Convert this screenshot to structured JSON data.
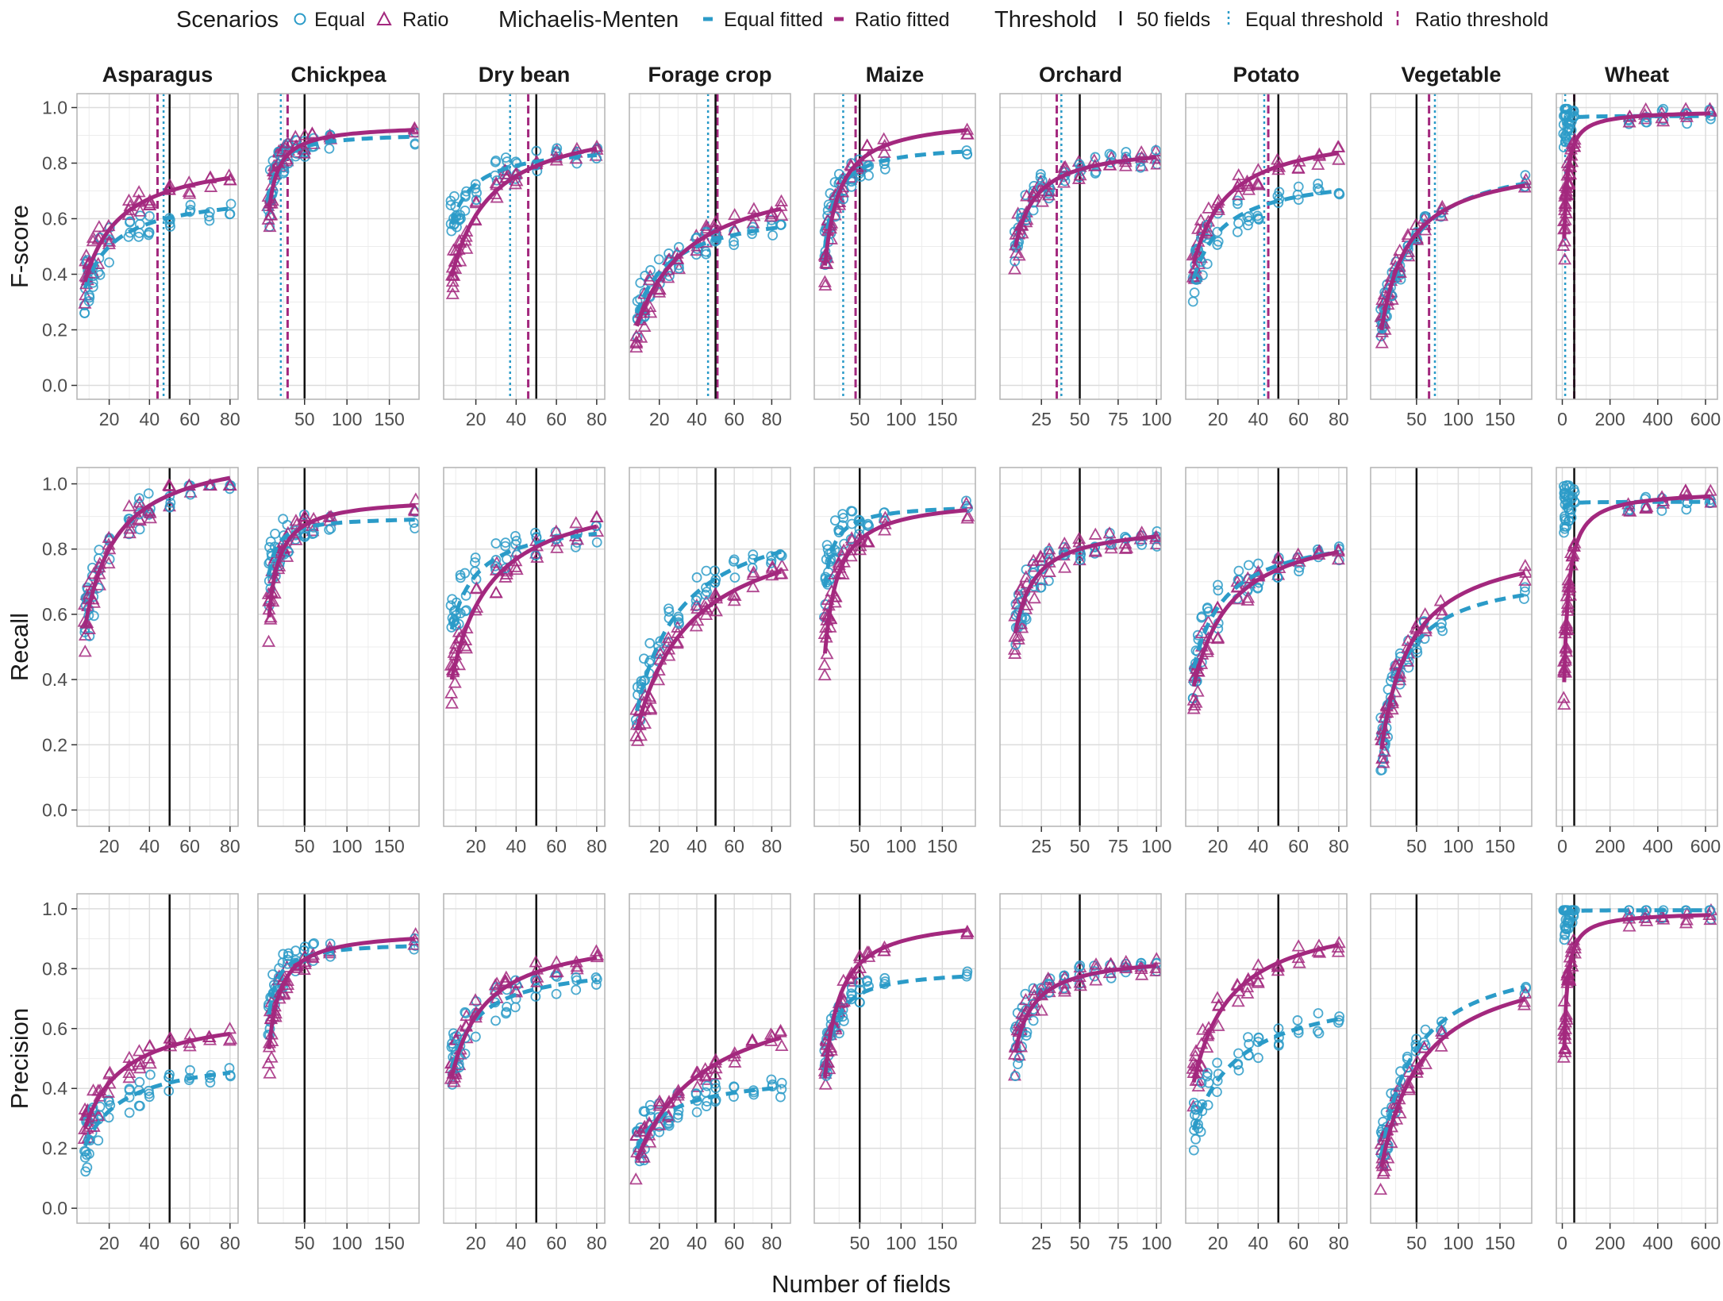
{
  "colors": {
    "equal": "#2b9bc8",
    "ratio": "#a3287e",
    "threshold": "#111111",
    "grid": "#dcdcdc",
    "frame": "#b3b3b3"
  },
  "legend": {
    "scenarios_title": "Scenarios",
    "equal_label": "Equal",
    "ratio_label": "Ratio",
    "mm_title": "Michaelis-Menten",
    "equal_fitted_label": "Equal fitted",
    "ratio_fitted_label": "Ratio fitted",
    "threshold_title": "Threshold",
    "fields50_label": "50 fields",
    "equal_threshold_label": "Equal threshold",
    "ratio_threshold_label": "Ratio threshold"
  },
  "chart_data": {
    "type": "scatter",
    "title": "",
    "xlabel": "Number of fields",
    "rows": [
      "F-score",
      "Recall",
      "Precision"
    ],
    "ylim": [
      -0.05,
      1.05
    ],
    "yticks": [
      0.0,
      0.2,
      0.4,
      0.6,
      0.8,
      1.0
    ],
    "ytick_labels": [
      "0.0",
      "0.2",
      "0.4",
      "0.6",
      "0.8",
      "1.0"
    ],
    "threshold_50": 50,
    "series": [
      {
        "name": "Equal"
      },
      {
        "name": "Ratio"
      },
      {
        "name": "Equal fitted"
      },
      {
        "name": "Ratio fitted"
      }
    ],
    "panels": [
      {
        "crop": "Asparagus",
        "xlim": [
          4,
          84
        ],
        "xticks": [
          20,
          40,
          60,
          80
        ],
        "xtick_labels": [
          "20",
          "40",
          "60",
          "80"
        ],
        "x_samples": [
          8,
          9,
          10,
          12,
          15,
          20,
          30,
          35,
          40,
          50,
          60,
          70,
          80
        ],
        "equal_threshold": 47,
        "ratio_threshold": 44,
        "fscore": {
          "equal_fit": [
            0.7,
            8
          ],
          "ratio_fit": [
            0.84,
            10
          ]
        },
        "recall": {
          "equal_fit": [
            1.12,
            8
          ],
          "ratio_fit": [
            1.12,
            8
          ]
        },
        "precision": {
          "equal_fit": [
            0.52,
            12
          ],
          "ratio_fit": [
            0.67,
            12
          ]
        }
      },
      {
        "crop": "Chickpea",
        "xlim": [
          -5,
          185
        ],
        "xticks": [
          50,
          100,
          150
        ],
        "xtick_labels": [
          "50",
          "100",
          "150"
        ],
        "x_samples": [
          8,
          10,
          12,
          15,
          20,
          25,
          30,
          40,
          50,
          60,
          80,
          180
        ],
        "equal_threshold": 22,
        "ratio_threshold": 30,
        "fscore": {
          "equal_fit": [
            0.91,
            3
          ],
          "ratio_fit": [
            0.94,
            4
          ]
        },
        "recall": {
          "equal_fit": [
            0.9,
            2
          ],
          "ratio_fit": [
            0.96,
            5
          ]
        },
        "precision": {
          "equal_fit": [
            0.89,
            3
          ],
          "ratio_fit": [
            0.93,
            6
          ]
        }
      },
      {
        "crop": "Dry bean",
        "xlim": [
          4,
          84
        ],
        "xticks": [
          20,
          40,
          60,
          80
        ],
        "xtick_labels": [
          "20",
          "40",
          "60",
          "80"
        ],
        "x_samples": [
          8,
          9,
          10,
          12,
          15,
          20,
          30,
          35,
          40,
          50,
          60,
          70,
          80
        ],
        "equal_threshold": 37,
        "ratio_threshold": 46,
        "fscore": {
          "equal_fit": [
            0.87,
            4
          ],
          "ratio_fit": [
            0.98,
            12
          ]
        },
        "recall": {
          "equal_fit": [
            0.9,
            5
          ],
          "ratio_fit": [
            1.0,
            12
          ]
        },
        "precision": {
          "equal_fit": [
            0.82,
            6
          ],
          "ratio_fit": [
            0.93,
            9
          ]
        }
      },
      {
        "crop": "Forage crop",
        "xlim": [
          4,
          90
        ],
        "xticks": [
          20,
          40,
          60,
          80
        ],
        "xtick_labels": [
          "20",
          "40",
          "60",
          "80"
        ],
        "x_samples": [
          8,
          10,
          12,
          15,
          20,
          25,
          30,
          40,
          45,
          50,
          60,
          70,
          80,
          85
        ],
        "equal_threshold": 46,
        "ratio_threshold": 51,
        "fscore": {
          "equal_fit": [
            0.65,
            12
          ],
          "ratio_fit": [
            0.8,
            22
          ]
        },
        "recall": {
          "equal_fit": [
            0.95,
            17
          ],
          "ratio_fit": [
            0.92,
            22
          ]
        },
        "precision": {
          "equal_fit": [
            0.45,
            10
          ],
          "ratio_fit": [
            0.77,
            30
          ]
        }
      },
      {
        "crop": "Maize",
        "xlim": [
          -5,
          190
        ],
        "xticks": [
          50,
          100,
          150
        ],
        "xtick_labels": [
          "50",
          "100",
          "150"
        ],
        "x_samples": [
          8,
          10,
          12,
          15,
          20,
          25,
          30,
          40,
          50,
          60,
          80,
          180
        ],
        "equal_threshold": 30,
        "ratio_threshold": 45,
        "fscore": {
          "equal_fit": [
            0.87,
            6
          ],
          "ratio_fit": [
            0.97,
            10
          ]
        },
        "recall": {
          "equal_fit": [
            0.94,
            3
          ],
          "ratio_fit": [
            0.96,
            8
          ]
        },
        "precision": {
          "equal_fit": [
            0.8,
            6
          ],
          "ratio_fit": [
            0.98,
            10
          ]
        }
      },
      {
        "crop": "Orchard",
        "xlim": [
          -2,
          103
        ],
        "xticks": [
          25,
          50,
          75,
          100
        ],
        "xtick_labels": [
          "25",
          "50",
          "75",
          "100"
        ],
        "x_samples": [
          8,
          10,
          12,
          15,
          20,
          25,
          30,
          40,
          50,
          60,
          70,
          80,
          90,
          100
        ],
        "equal_threshold": 38,
        "ratio_threshold": 35,
        "fscore": {
          "equal_fit": [
            0.87,
            6
          ],
          "ratio_fit": [
            0.87,
            6
          ]
        },
        "recall": {
          "equal_fit": [
            0.88,
            5
          ],
          "ratio_fit": [
            0.88,
            5
          ]
        },
        "precision": {
          "equal_fit": [
            0.85,
            5
          ],
          "ratio_fit": [
            0.85,
            5
          ]
        }
      },
      {
        "crop": "Potato",
        "xlim": [
          4,
          84
        ],
        "xticks": [
          20,
          40,
          60,
          80
        ],
        "xtick_labels": [
          "20",
          "40",
          "60",
          "80"
        ],
        "x_samples": [
          8,
          9,
          10,
          12,
          15,
          20,
          30,
          35,
          40,
          50,
          60,
          70,
          80
        ],
        "equal_threshold": 43,
        "ratio_threshold": 45,
        "fscore": {
          "equal_fit": [
            0.77,
            8
          ],
          "ratio_fit": [
            0.93,
            9
          ]
        },
        "recall": {
          "equal_fit": [
            0.87,
            8
          ],
          "ratio_fit": [
            0.9,
            11
          ]
        },
        "precision": {
          "equal_fit": [
            0.75,
            15
          ],
          "ratio_fit": [
            1.0,
            11
          ]
        }
      },
      {
        "crop": "Vegetable",
        "xlim": [
          -5,
          188
        ],
        "xticks": [
          50,
          100,
          150
        ],
        "xtick_labels": [
          "50",
          "100",
          "150"
        ],
        "x_samples": [
          8,
          10,
          12,
          15,
          20,
          25,
          30,
          40,
          50,
          60,
          80,
          180
        ],
        "equal_threshold": 72,
        "ratio_threshold": 65,
        "fscore": {
          "equal_fit": [
            0.84,
            28
          ],
          "ratio_fit": [
            0.82,
            25
          ]
        },
        "recall": {
          "equal_fit": [
            0.74,
            22
          ],
          "ratio_fit": [
            0.84,
            28
          ]
        },
        "precision": {
          "equal_fit": [
            0.87,
            32
          ],
          "ratio_fit": [
            0.86,
            42
          ]
        }
      },
      {
        "crop": "Wheat",
        "xlim": [
          -25,
          650
        ],
        "xticks": [
          0,
          200,
          400,
          600
        ],
        "xtick_labels": [
          "0",
          "200",
          "400",
          "600"
        ],
        "x_samples": [
          8,
          10,
          12,
          15,
          20,
          25,
          30,
          40,
          50,
          280,
          350,
          420,
          520,
          620
        ],
        "equal_threshold": 12,
        "ratio_threshold": 50,
        "fscore": {
          "equal_fit": [
            0.97,
            0.3
          ],
          "ratio_fit": [
            0.99,
            7
          ]
        },
        "recall": {
          "equal_fit": [
            0.945,
            0.2
          ],
          "ratio_fit": [
            0.98,
            12
          ]
        },
        "precision": {
          "equal_fit": [
            0.995,
            0.1
          ],
          "ratio_fit": [
            0.99,
            7
          ]
        }
      }
    ]
  }
}
